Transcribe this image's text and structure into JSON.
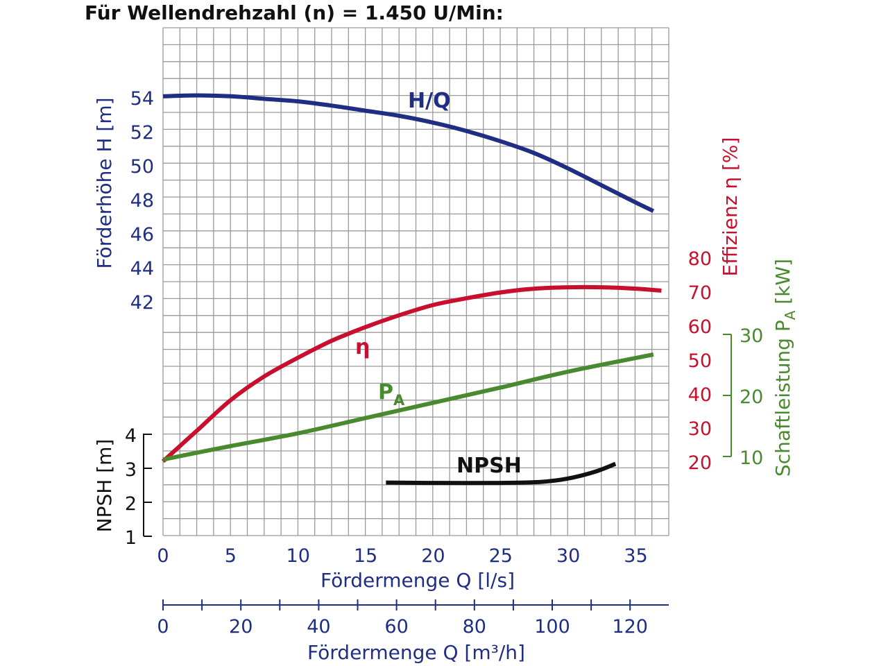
{
  "title": "Für Wellendrehzahl (n) = 1.450 U/Min:",
  "colors": {
    "head": "#1f2e83",
    "efficiency": "#c8102e",
    "power": "#4a8a2e",
    "npsh": "#111111",
    "grid": "#999999",
    "axis": "#1f2e83"
  },
  "chart_data": {
    "type": "line",
    "grid": true,
    "axes": {
      "x": {
        "label": "Fördermenge Q [l/s]",
        "range": [
          0,
          37.5
        ],
        "ticks": [
          "0",
          "5",
          "10",
          "15",
          "20",
          "25",
          "30",
          "35"
        ]
      },
      "x2": {
        "label": "Fördermenge Q [m³/h]",
        "ticks": [
          "0",
          "20",
          "40",
          "60",
          "80",
          "100",
          "120"
        ]
      },
      "head": {
        "label": "Förderhöhe H [m]",
        "ticks": [
          "42",
          "44",
          "46",
          "48",
          "50",
          "52",
          "54"
        ]
      },
      "npsh": {
        "label": "NPSH [m]",
        "ticks": [
          "1",
          "2",
          "3",
          "4"
        ]
      },
      "efficiency": {
        "label": "Effizienz η [%]",
        "ticks": [
          "20",
          "30",
          "40",
          "50",
          "60",
          "70",
          "80"
        ]
      },
      "power": {
        "label": "Schaftleistung P",
        "label_sub": "A",
        "label_unit": " [kW]",
        "ticks": [
          "10",
          "20",
          "30"
        ]
      }
    },
    "series": [
      {
        "name": "H/Q",
        "axis": "head",
        "x": [
          0,
          2.5,
          5,
          7.5,
          10,
          12.5,
          15,
          17.5,
          20,
          22.5,
          25,
          27.5,
          30,
          32.5,
          35,
          36.3
        ],
        "y": [
          54.05,
          54.1,
          54.05,
          53.9,
          53.75,
          53.5,
          53.2,
          52.9,
          52.5,
          52.0,
          51.4,
          50.7,
          49.8,
          48.8,
          47.8,
          47.3
        ]
      },
      {
        "name": "η",
        "axis": "efficiency",
        "x": [
          0,
          2.5,
          5,
          7.5,
          10,
          12.5,
          15,
          17.5,
          20,
          22.5,
          25,
          27.5,
          30,
          32.5,
          35,
          36.9
        ],
        "y": [
          20,
          29,
          38,
          45,
          50.5,
          55.5,
          59.5,
          63,
          66,
          68,
          69.7,
          70.8,
          71.2,
          71.2,
          70.8,
          70.2
        ]
      },
      {
        "name": "P",
        "name_sub": "A",
        "axis": "power",
        "x": [
          0,
          5,
          10,
          15,
          20,
          25,
          30,
          36.3
        ],
        "y": [
          9.5,
          11.7,
          13.8,
          16.3,
          18.8,
          21.3,
          23.9,
          26.7
        ]
      },
      {
        "name": "NPSH",
        "axis": "npsh",
        "x": [
          16.5,
          20,
          25,
          28,
          30,
          32,
          33.5
        ],
        "y": [
          2.58,
          2.57,
          2.57,
          2.6,
          2.7,
          2.9,
          3.13
        ]
      }
    ]
  }
}
